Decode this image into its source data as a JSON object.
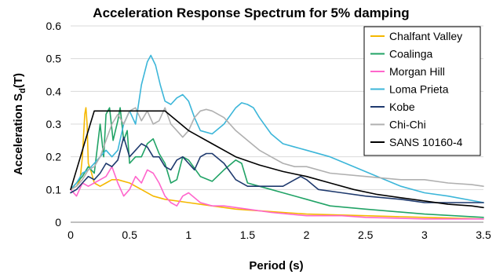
{
  "chart_data": {
    "type": "line",
    "title": "Acceleration Response Spectrum for 5% damping",
    "xlabel": "Period (s)",
    "ylabel_main": "Acceleration S",
    "ylabel_sub": "d",
    "ylabel_suffix": "(T)",
    "xlim": [
      0,
      3.5
    ],
    "ylim": [
      0,
      0.6
    ],
    "x_ticks": [
      0,
      0.5,
      1,
      1.5,
      2,
      2.5,
      3,
      3.5
    ],
    "x_tick_labels": [
      "0",
      "0.5",
      "1",
      "1.5",
      "2",
      "2.5",
      "3",
      "3.5"
    ],
    "y_ticks": [
      0,
      0.1,
      0.2,
      0.3,
      0.4,
      0.5,
      0.6
    ],
    "y_tick_labels": [
      "0",
      "0.1",
      "0.2",
      "0.3",
      "0.4",
      "0.5",
      "0.6"
    ],
    "grid": "horizontal",
    "legend_position": "top-right",
    "series": [
      {
        "name": "Chalfant Valley",
        "color": "#f5b800",
        "x": [
          0,
          0.05,
          0.08,
          0.1,
          0.12,
          0.13,
          0.14,
          0.15,
          0.17,
          0.2,
          0.25,
          0.3,
          0.35,
          0.4,
          0.5,
          0.6,
          0.7,
          0.8,
          1.0,
          1.2,
          1.4,
          1.6,
          1.8,
          2.0,
          2.5,
          3.0,
          3.5
        ],
        "y": [
          0.1,
          0.11,
          0.13,
          0.2,
          0.33,
          0.35,
          0.3,
          0.18,
          0.16,
          0.12,
          0.11,
          0.12,
          0.13,
          0.13,
          0.12,
          0.1,
          0.08,
          0.07,
          0.06,
          0.05,
          0.04,
          0.035,
          0.03,
          0.025,
          0.02,
          0.015,
          0.01
        ]
      },
      {
        "name": "Coalinga",
        "color": "#21a366",
        "x": [
          0,
          0.05,
          0.1,
          0.15,
          0.2,
          0.25,
          0.28,
          0.3,
          0.33,
          0.36,
          0.4,
          0.42,
          0.45,
          0.48,
          0.5,
          0.55,
          0.6,
          0.65,
          0.7,
          0.75,
          0.8,
          0.85,
          0.9,
          0.95,
          1.0,
          1.1,
          1.2,
          1.3,
          1.4,
          1.45,
          1.5,
          1.6,
          1.7,
          1.8,
          2.0,
          2.2,
          2.5,
          3.0,
          3.5
        ],
        "y": [
          0.1,
          0.12,
          0.14,
          0.17,
          0.15,
          0.3,
          0.2,
          0.33,
          0.35,
          0.25,
          0.31,
          0.35,
          0.25,
          0.28,
          0.18,
          0.2,
          0.2,
          0.24,
          0.255,
          0.21,
          0.18,
          0.12,
          0.13,
          0.2,
          0.19,
          0.14,
          0.125,
          0.16,
          0.19,
          0.18,
          0.12,
          0.11,
          0.1,
          0.09,
          0.07,
          0.05,
          0.04,
          0.025,
          0.015
        ]
      },
      {
        "name": "Morgan Hill",
        "color": "#ff66cc",
        "x": [
          0,
          0.05,
          0.1,
          0.15,
          0.2,
          0.25,
          0.3,
          0.35,
          0.4,
          0.45,
          0.5,
          0.55,
          0.6,
          0.65,
          0.7,
          0.75,
          0.8,
          0.85,
          0.9,
          0.95,
          1.0,
          1.1,
          1.2,
          1.3,
          1.5,
          1.7,
          2.0,
          2.3,
          2.5,
          3.0,
          3.5
        ],
        "y": [
          0.1,
          0.08,
          0.12,
          0.11,
          0.12,
          0.13,
          0.14,
          0.17,
          0.12,
          0.08,
          0.1,
          0.14,
          0.12,
          0.16,
          0.15,
          0.12,
          0.08,
          0.06,
          0.05,
          0.08,
          0.09,
          0.06,
          0.05,
          0.05,
          0.04,
          0.03,
          0.02,
          0.02,
          0.015,
          0.01,
          0.01
        ]
      },
      {
        "name": "Loma Prieta",
        "color": "#3cb6d9",
        "x": [
          0,
          0.05,
          0.1,
          0.15,
          0.2,
          0.25,
          0.3,
          0.35,
          0.4,
          0.45,
          0.5,
          0.55,
          0.6,
          0.65,
          0.68,
          0.72,
          0.76,
          0.8,
          0.85,
          0.9,
          0.95,
          1.0,
          1.05,
          1.1,
          1.2,
          1.3,
          1.4,
          1.45,
          1.5,
          1.55,
          1.6,
          1.7,
          1.8,
          1.9,
          2.0,
          2.2,
          2.4,
          2.6,
          2.8,
          3.0,
          3.2,
          3.5
        ],
        "y": [
          0.1,
          0.12,
          0.15,
          0.16,
          0.18,
          0.2,
          0.22,
          0.2,
          0.22,
          0.3,
          0.34,
          0.3,
          0.42,
          0.49,
          0.51,
          0.48,
          0.42,
          0.37,
          0.36,
          0.38,
          0.39,
          0.37,
          0.32,
          0.28,
          0.27,
          0.3,
          0.35,
          0.365,
          0.36,
          0.35,
          0.32,
          0.27,
          0.24,
          0.23,
          0.22,
          0.2,
          0.17,
          0.14,
          0.11,
          0.09,
          0.08,
          0.06
        ]
      },
      {
        "name": "Kobe",
        "color": "#1f3a6e",
        "x": [
          0,
          0.05,
          0.1,
          0.15,
          0.2,
          0.25,
          0.3,
          0.35,
          0.4,
          0.45,
          0.5,
          0.55,
          0.6,
          0.65,
          0.7,
          0.75,
          0.8,
          0.85,
          0.9,
          0.95,
          1.0,
          1.05,
          1.1,
          1.15,
          1.2,
          1.3,
          1.4,
          1.5,
          1.6,
          1.7,
          1.8,
          1.9,
          1.95,
          2.0,
          2.1,
          2.3,
          2.5,
          2.8,
          3.0,
          3.2,
          3.4,
          3.5
        ],
        "y": [
          0.09,
          0.1,
          0.12,
          0.14,
          0.13,
          0.15,
          0.18,
          0.17,
          0.19,
          0.26,
          0.2,
          0.22,
          0.24,
          0.23,
          0.2,
          0.2,
          0.17,
          0.16,
          0.19,
          0.2,
          0.18,
          0.16,
          0.2,
          0.21,
          0.21,
          0.18,
          0.13,
          0.11,
          0.11,
          0.11,
          0.11,
          0.13,
          0.14,
          0.13,
          0.1,
          0.09,
          0.08,
          0.07,
          0.06,
          0.06,
          0.06,
          0.06
        ]
      },
      {
        "name": "Chi-Chi",
        "color": "#b0b0b0",
        "x": [
          0,
          0.05,
          0.1,
          0.15,
          0.2,
          0.25,
          0.3,
          0.35,
          0.4,
          0.45,
          0.5,
          0.55,
          0.6,
          0.65,
          0.7,
          0.75,
          0.8,
          0.85,
          0.9,
          0.95,
          1.0,
          1.05,
          1.1,
          1.15,
          1.2,
          1.3,
          1.4,
          1.5,
          1.6,
          1.7,
          1.8,
          1.9,
          2.0,
          2.2,
          2.5,
          2.8,
          3.0,
          3.2,
          3.4,
          3.5
        ],
        "y": [
          0.1,
          0.11,
          0.13,
          0.16,
          0.17,
          0.2,
          0.25,
          0.3,
          0.33,
          0.3,
          0.34,
          0.35,
          0.31,
          0.34,
          0.3,
          0.31,
          0.35,
          0.3,
          0.28,
          0.26,
          0.28,
          0.32,
          0.34,
          0.345,
          0.34,
          0.32,
          0.28,
          0.25,
          0.22,
          0.2,
          0.18,
          0.17,
          0.17,
          0.15,
          0.14,
          0.13,
          0.13,
          0.12,
          0.115,
          0.11
        ]
      },
      {
        "name": "SANS 10160-4",
        "color": "#000000",
        "x": [
          0,
          0.05,
          0.1,
          0.15,
          0.2,
          0.8,
          0.9,
          1.0,
          1.2,
          1.4,
          1.6,
          1.8,
          2.0,
          2.2,
          2.4,
          2.6,
          2.8,
          3.0,
          3.2,
          3.4,
          3.5
        ],
        "y": [
          0.1,
          0.16,
          0.22,
          0.28,
          0.34,
          0.34,
          0.31,
          0.28,
          0.24,
          0.2,
          0.175,
          0.155,
          0.14,
          0.12,
          0.1,
          0.085,
          0.075,
          0.065,
          0.055,
          0.05,
          0.045
        ]
      }
    ]
  }
}
